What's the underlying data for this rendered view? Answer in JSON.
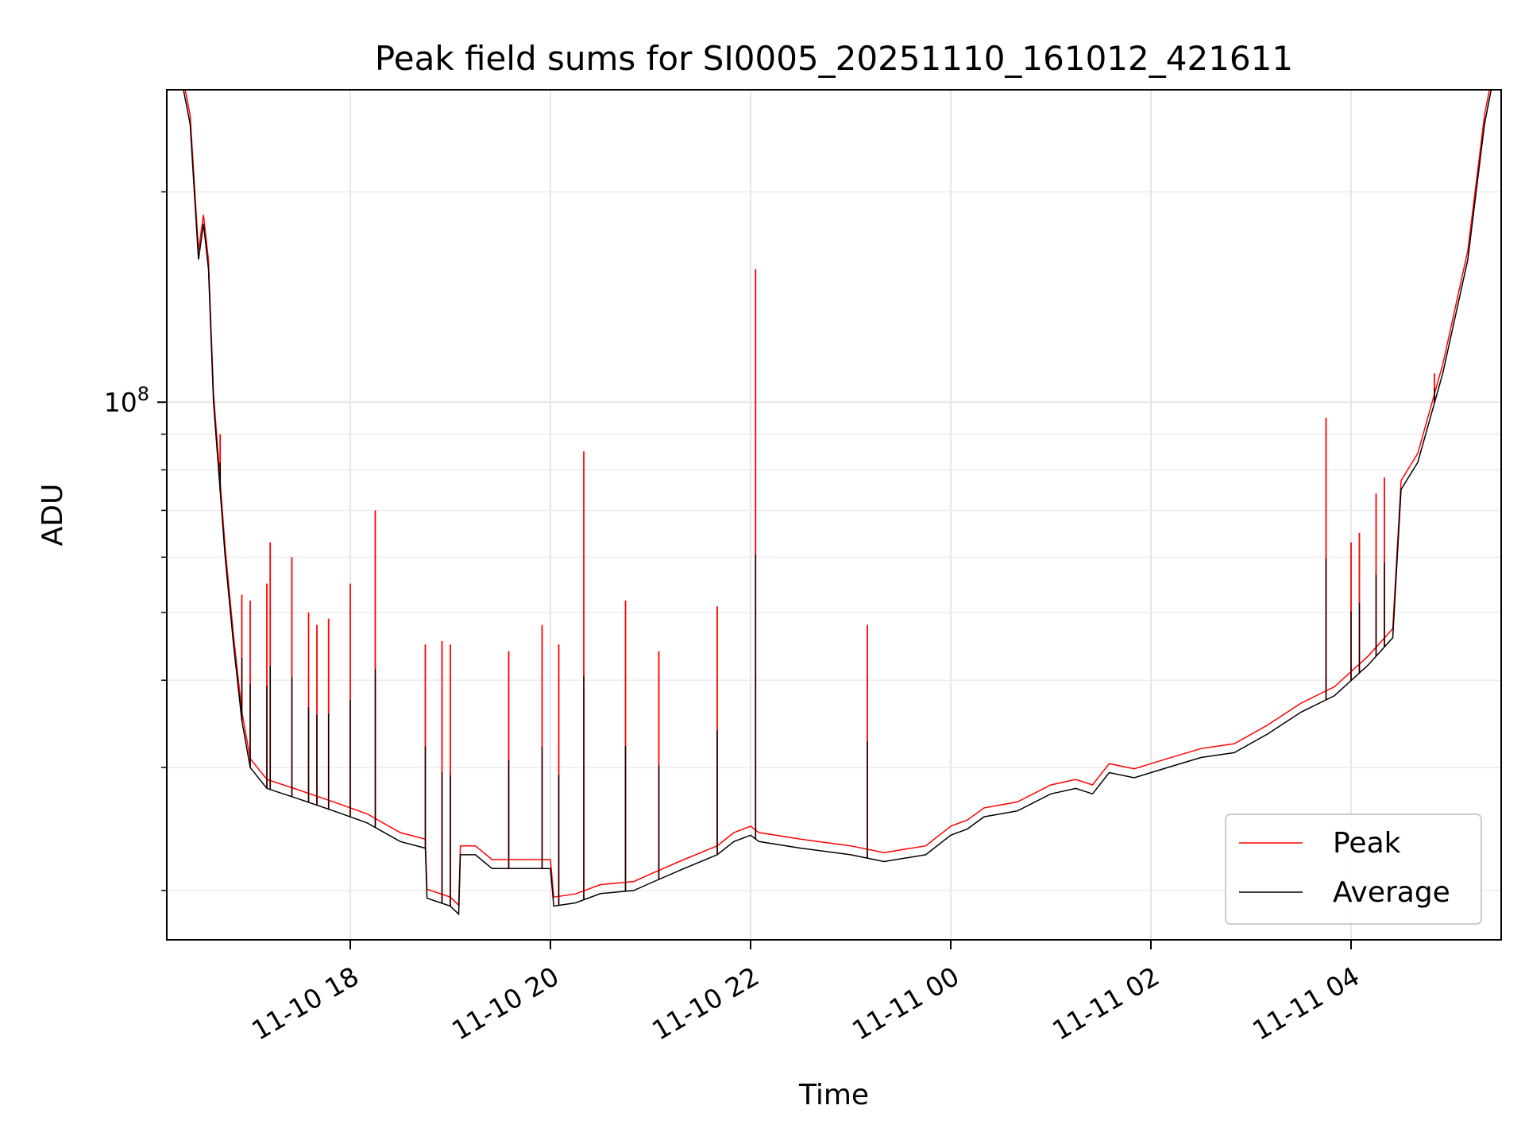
{
  "chart_data": {
    "type": "line",
    "title": "Peak field sums for SI0005_20251110_161012_421611",
    "xlabel": "Time",
    "ylabel": "ADU",
    "x_range": [
      "2025-11-10 16:10",
      "2025-11-11 05:30"
    ],
    "y_range": [
      17000000,
      280000000
    ],
    "y_scale": "log",
    "grid": true,
    "y_major_tick": {
      "value": 100000000,
      "label_base": "10",
      "label_exp": "8"
    },
    "y_minor_ticks": [
      20000000,
      30000000,
      40000000,
      50000000,
      60000000,
      70000000,
      80000000,
      90000000,
      200000000
    ],
    "x_ticks": [
      {
        "value": "2025-11-10 18:00",
        "label": "11-10 18"
      },
      {
        "value": "2025-11-10 20:00",
        "label": "11-10 20"
      },
      {
        "value": "2025-11-10 22:00",
        "label": "11-10 22"
      },
      {
        "value": "2025-11-11 00:00",
        "label": "11-11 00"
      },
      {
        "value": "2025-11-11 02:00",
        "label": "11-11 02"
      },
      {
        "value": "2025-11-11 04:00",
        "label": "11-11 04"
      }
    ],
    "legend": {
      "position": "lower-right",
      "entries": [
        "Peak",
        "Average"
      ]
    },
    "series": [
      {
        "name": "Average",
        "color": "#000000",
        "points": [
          [
            "2025-11-10 16:10",
            280000000
          ],
          [
            "2025-11-10 16:20",
            280000000
          ],
          [
            "2025-11-10 16:24",
            250000000
          ],
          [
            "2025-11-10 16:29",
            160000000
          ],
          [
            "2025-11-10 16:32",
            180000000
          ],
          [
            "2025-11-10 16:35",
            155000000
          ],
          [
            "2025-11-10 16:38",
            100000000
          ],
          [
            "2025-11-10 16:45",
            60000000
          ],
          [
            "2025-11-10 16:50",
            45000000
          ],
          [
            "2025-11-10 16:55",
            35000000
          ],
          [
            "2025-11-10 17:00",
            30000000
          ],
          [
            "2025-11-10 17:10",
            28000000
          ],
          [
            "2025-11-10 17:30",
            27000000
          ],
          [
            "2025-11-10 17:50",
            26000000
          ],
          [
            "2025-11-10 18:10",
            25000000
          ],
          [
            "2025-11-10 18:30",
            23500000
          ],
          [
            "2025-11-10 18:45",
            23000000
          ],
          [
            "2025-11-10 18:46",
            19500000
          ],
          [
            "2025-11-10 19:00",
            19000000
          ],
          [
            "2025-11-10 19:05",
            18500000
          ],
          [
            "2025-11-10 19:06",
            22500000
          ],
          [
            "2025-11-10 19:15",
            22500000
          ],
          [
            "2025-11-10 19:25",
            21500000
          ],
          [
            "2025-11-10 19:40",
            21500000
          ],
          [
            "2025-11-10 20:00",
            21500000
          ],
          [
            "2025-11-10 20:02",
            19000000
          ],
          [
            "2025-11-10 20:15",
            19200000
          ],
          [
            "2025-11-10 20:30",
            19800000
          ],
          [
            "2025-11-10 20:50",
            20000000
          ],
          [
            "2025-11-10 21:00",
            20500000
          ],
          [
            "2025-11-10 21:20",
            21500000
          ],
          [
            "2025-11-10 21:40",
            22500000
          ],
          [
            "2025-11-10 21:50",
            23500000
          ],
          [
            "2025-11-10 22:00",
            24000000
          ],
          [
            "2025-11-10 22:05",
            23500000
          ],
          [
            "2025-11-10 22:30",
            23000000
          ],
          [
            "2025-11-10 23:00",
            22500000
          ],
          [
            "2025-11-10 23:20",
            22000000
          ],
          [
            "2025-11-10 23:45",
            22500000
          ],
          [
            "2025-11-11 00:00",
            24000000
          ],
          [
            "2025-11-11 00:10",
            24500000
          ],
          [
            "2025-11-11 00:20",
            25500000
          ],
          [
            "2025-11-11 00:40",
            26000000
          ],
          [
            "2025-11-11 01:00",
            27500000
          ],
          [
            "2025-11-11 01:15",
            28000000
          ],
          [
            "2025-11-11 01:25",
            27500000
          ],
          [
            "2025-11-11 01:35",
            29500000
          ],
          [
            "2025-11-11 01:50",
            29000000
          ],
          [
            "2025-11-11 02:10",
            30000000
          ],
          [
            "2025-11-11 02:30",
            31000000
          ],
          [
            "2025-11-11 02:50",
            31500000
          ],
          [
            "2025-11-11 03:10",
            33500000
          ],
          [
            "2025-11-11 03:30",
            36000000
          ],
          [
            "2025-11-11 03:50",
            38000000
          ],
          [
            "2025-11-11 04:10",
            42000000
          ],
          [
            "2025-11-11 04:25",
            46000000
          ],
          [
            "2025-11-11 04:30",
            75000000
          ],
          [
            "2025-11-11 04:40",
            82000000
          ],
          [
            "2025-11-11 04:55",
            110000000
          ],
          [
            "2025-11-11 05:10",
            160000000
          ],
          [
            "2025-11-11 05:20",
            250000000
          ],
          [
            "2025-11-11 05:24",
            280000000
          ],
          [
            "2025-11-11 05:30",
            280000000
          ]
        ]
      },
      {
        "name": "Peak",
        "color": "#ff0000",
        "spikes": [
          [
            "2025-11-10 16:42",
            90000000
          ],
          [
            "2025-11-10 16:55",
            53000000
          ],
          [
            "2025-11-10 17:00",
            52000000
          ],
          [
            "2025-11-10 17:10",
            55000000
          ],
          [
            "2025-11-10 17:12",
            63000000
          ],
          [
            "2025-11-10 17:25",
            60000000
          ],
          [
            "2025-11-10 17:35",
            50000000
          ],
          [
            "2025-11-10 17:40",
            48000000
          ],
          [
            "2025-11-10 17:47",
            49000000
          ],
          [
            "2025-11-10 18:00",
            55000000
          ],
          [
            "2025-11-10 18:15",
            70000000
          ],
          [
            "2025-11-10 18:45",
            45000000
          ],
          [
            "2025-11-10 18:55",
            45500000
          ],
          [
            "2025-11-10 19:00",
            45000000
          ],
          [
            "2025-11-10 19:35",
            44000000
          ],
          [
            "2025-11-10 19:55",
            48000000
          ],
          [
            "2025-11-10 20:05",
            45000000
          ],
          [
            "2025-11-10 20:20",
            85000000
          ],
          [
            "2025-11-10 20:45",
            52000000
          ],
          [
            "2025-11-10 21:05",
            44000000
          ],
          [
            "2025-11-10 21:40",
            51000000
          ],
          [
            "2025-11-10 22:03",
            155000000
          ],
          [
            "2025-11-10 23:10",
            48000000
          ],
          [
            "2025-11-11 03:45",
            95000000
          ],
          [
            "2025-11-11 04:00",
            63000000
          ],
          [
            "2025-11-11 04:05",
            65000000
          ],
          [
            "2025-11-11 04:15",
            74000000
          ],
          [
            "2025-11-11 04:20",
            78000000
          ],
          [
            "2025-11-11 04:50",
            110000000
          ]
        ]
      }
    ]
  }
}
